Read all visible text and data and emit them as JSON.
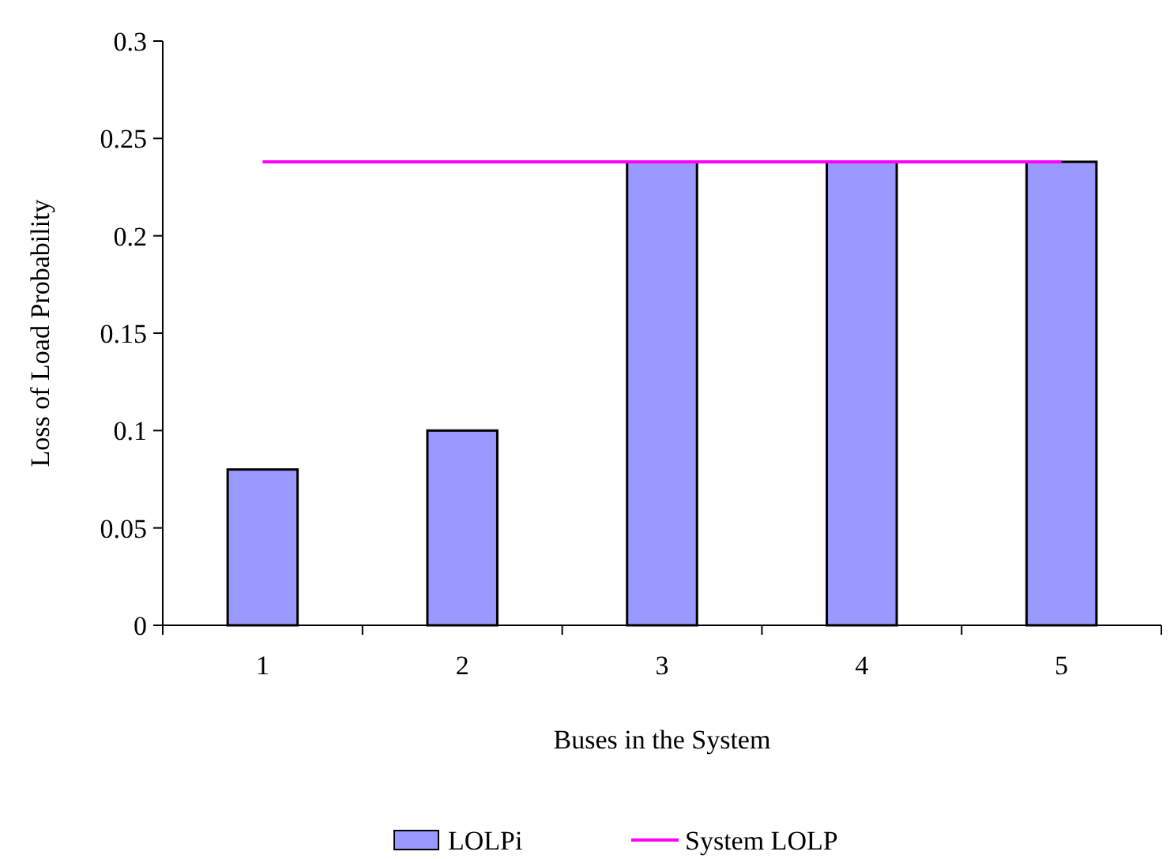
{
  "chart_data": {
    "type": "bar",
    "xlabel": "Buses in the System",
    "ylabel": "Loss of Load Probability",
    "categories": [
      "1",
      "2",
      "3",
      "4",
      "5"
    ],
    "series": [
      {
        "name": "LOLPi",
        "color": "#9999ff",
        "values": [
          0.08,
          0.1,
          0.238,
          0.238,
          0.238
        ]
      },
      {
        "name": "System LOLP",
        "type": "line",
        "color": "#ff00ff",
        "values": [
          0.238,
          0.238,
          0.238,
          0.238,
          0.238
        ]
      }
    ],
    "ylim": [
      0,
      0.3
    ],
    "yticks": [
      0,
      0.05,
      0.1,
      0.15,
      0.2,
      0.25,
      0.3
    ],
    "grid": false,
    "legend": "bottom",
    "marker": "none",
    "line_style": "solid"
  }
}
